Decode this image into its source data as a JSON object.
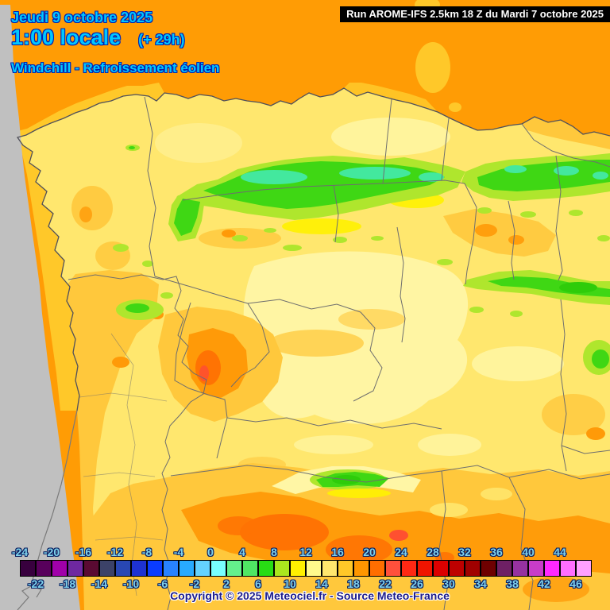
{
  "header": {
    "date_line": "Jeudi 9 octobre 2025",
    "time_line": "1:00 locale",
    "hour_offset": "(+ 29h)",
    "variable_line": "Windchill - Refroissement éolien",
    "text_color": "#00C8FF"
  },
  "run_banner": {
    "text": "Run AROME-IFS 2.5km 18 Z du Mardi 7 octobre 2025",
    "bg_color": "#000000",
    "text_color": "#FFFFFF"
  },
  "map_palette": {
    "sea": "#FF9C05",
    "near_shore_sea": "#FFC829",
    "land_base": "#FFE76E",
    "pale_land": "#FFF6A5",
    "gold": "#FFC83C",
    "orange": "#FF9A08",
    "deep_orange": "#FF7303",
    "red_orange": "#FF5030",
    "yellow_green": "#AFE62D",
    "green": "#3FD714",
    "mint": "#43E89E",
    "bright_yellow": "#FFF200",
    "out_of_domain": "#C0C0C0",
    "coastline": "#50505A",
    "border": "#6E6E6E"
  },
  "legend": {
    "cell_colors": [
      "#38003E",
      "#58005C",
      "#A000AA",
      "#6E28A0",
      "#5A0A32",
      "#3C4268",
      "#2847B4",
      "#1E32D2",
      "#0A3CFF",
      "#2882FF",
      "#28AAFF",
      "#64D2FF",
      "#78FFFF",
      "#64F08C",
      "#50E664",
      "#28DC14",
      "#AAE61E",
      "#FFF000",
      "#FFFA8C",
      "#FFE66E",
      "#FFC828",
      "#FF9600",
      "#FF6E00",
      "#FF503C",
      "#FF2814",
      "#F01400",
      "#DC0000",
      "#BE0000",
      "#A00000",
      "#6E0000",
      "#6E2064",
      "#9632A0",
      "#C83CC8",
      "#FF28FF",
      "#FF6EFF",
      "#FFA0FF"
    ],
    "top_labels": [
      "-24",
      "-20",
      "-16",
      "-12",
      "-8",
      "-4",
      "0",
      "4",
      "8",
      "12",
      "16",
      "20",
      "24",
      "28",
      "32",
      "36",
      "40",
      "44"
    ],
    "bottom_labels": [
      "-22",
      "-18",
      "-14",
      "-10",
      "-6",
      "-2",
      "2",
      "6",
      "10",
      "14",
      "18",
      "22",
      "26",
      "30",
      "34",
      "38",
      "42",
      "46"
    ],
    "label_color": "#7FD2EC"
  },
  "copyright": {
    "text": "Copyright © 2025 Meteociel.fr - Source Meteo-France"
  }
}
